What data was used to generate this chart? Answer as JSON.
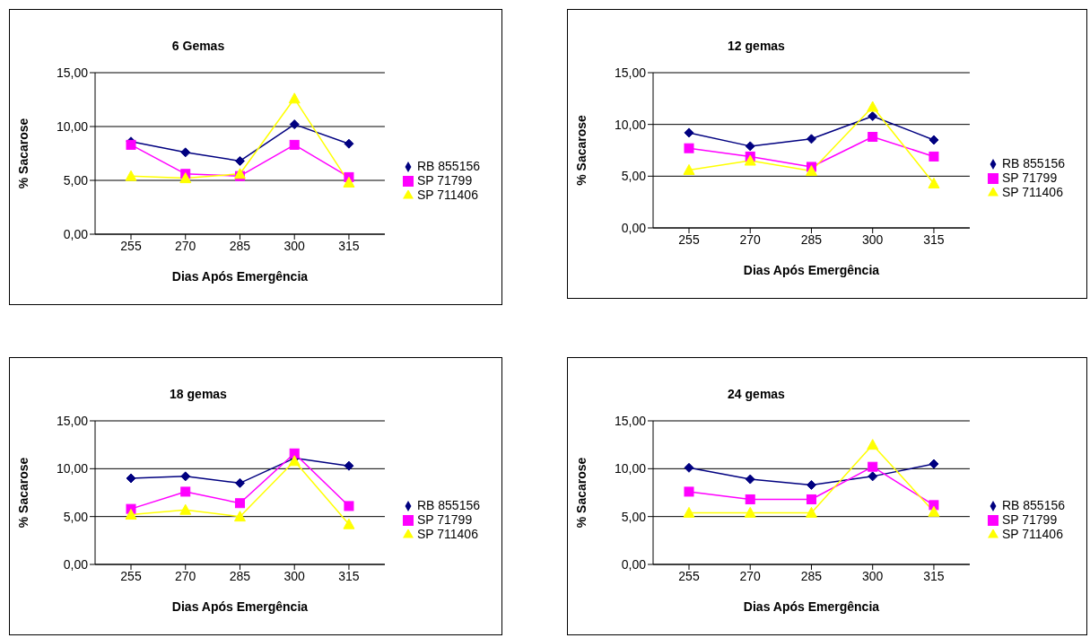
{
  "chart_data": [
    {
      "type": "line",
      "title": "6 Gemas",
      "xlabel": "Dias Após Emergência",
      "ylabel": "% Sacarose",
      "categories": [
        "255",
        "270",
        "285",
        "300",
        "315"
      ],
      "ylim": [
        0,
        15
      ],
      "yticks": [
        {
          "value": 0,
          "label": "0,00"
        },
        {
          "value": 5,
          "label": "5,00"
        },
        {
          "value": 10,
          "label": "10,00"
        },
        {
          "value": 15,
          "label": "15,00"
        }
      ],
      "grid": "y",
      "legend": "right",
      "series": [
        {
          "name": "RB 855156",
          "color": "#000080",
          "marker": "diamond",
          "values": [
            8.6,
            7.6,
            6.8,
            10.2,
            8.4
          ]
        },
        {
          "name": "SP 71799",
          "color": "#ff00ff",
          "marker": "square",
          "values": [
            8.3,
            5.6,
            5.4,
            8.3,
            5.3
          ]
        },
        {
          "name": "SP 711406",
          "color": "#ffff00",
          "marker": "triangle",
          "values": [
            5.4,
            5.2,
            5.6,
            12.6,
            4.8
          ]
        }
      ]
    },
    {
      "type": "line",
      "title": "12 gemas",
      "xlabel": "Dias Após Emergência",
      "ylabel": "% Sacarose",
      "categories": [
        "255",
        "270",
        "285",
        "300",
        "315"
      ],
      "ylim": [
        0,
        15
      ],
      "yticks": [
        {
          "value": 0,
          "label": "0,00"
        },
        {
          "value": 5,
          "label": "5,00"
        },
        {
          "value": 10,
          "label": "10,00"
        },
        {
          "value": 15,
          "label": "15,00"
        }
      ],
      "grid": "y",
      "legend": "right",
      "series": [
        {
          "name": "RB 855156",
          "color": "#000080",
          "marker": "diamond",
          "values": [
            9.2,
            7.9,
            8.6,
            10.8,
            8.5
          ]
        },
        {
          "name": "SP 71799",
          "color": "#ff00ff",
          "marker": "square",
          "values": [
            7.7,
            6.9,
            5.9,
            8.8,
            6.9
          ]
        },
        {
          "name": "SP 711406",
          "color": "#ffff00",
          "marker": "triangle",
          "values": [
            5.6,
            6.5,
            5.5,
            11.7,
            4.3
          ]
        }
      ]
    },
    {
      "type": "line",
      "title": "18 gemas",
      "xlabel": "Dias Após Emergência",
      "ylabel": "% Sacarose",
      "categories": [
        "255",
        "270",
        "285",
        "300",
        "315"
      ],
      "ylim": [
        0,
        15
      ],
      "yticks": [
        {
          "value": 0,
          "label": "0,00"
        },
        {
          "value": 5,
          "label": "5,00"
        },
        {
          "value": 10,
          "label": "10,00"
        },
        {
          "value": 15,
          "label": "15,00"
        }
      ],
      "grid": "y",
      "legend": "right",
      "series": [
        {
          "name": "RB 855156",
          "color": "#000080",
          "marker": "diamond",
          "values": [
            9.0,
            9.2,
            8.5,
            11.1,
            10.3
          ]
        },
        {
          "name": "SP 71799",
          "color": "#ff00ff",
          "marker": "square",
          "values": [
            5.8,
            7.6,
            6.4,
            11.6,
            6.1
          ]
        },
        {
          "name": "SP 711406",
          "color": "#ffff00",
          "marker": "triangle",
          "values": [
            5.2,
            5.7,
            5.0,
            10.8,
            4.2
          ]
        }
      ]
    },
    {
      "type": "line",
      "title": "24 gemas",
      "xlabel": "Dias Após Emergência",
      "ylabel": "% Sacarose",
      "categories": [
        "255",
        "270",
        "285",
        "300",
        "315"
      ],
      "ylim": [
        0,
        15
      ],
      "yticks": [
        {
          "value": 0,
          "label": "0,00"
        },
        {
          "value": 5,
          "label": "5,00"
        },
        {
          "value": 10,
          "label": "10,00"
        },
        {
          "value": 15,
          "label": "15,00"
        }
      ],
      "grid": "y",
      "legend": "right",
      "series": [
        {
          "name": "RB 855156",
          "color": "#000080",
          "marker": "diamond",
          "values": [
            10.1,
            8.9,
            8.3,
            9.2,
            10.5
          ]
        },
        {
          "name": "SP 71799",
          "color": "#ff00ff",
          "marker": "square",
          "values": [
            7.6,
            6.8,
            6.8,
            10.2,
            6.2
          ]
        },
        {
          "name": "SP 711406",
          "color": "#ffff00",
          "marker": "triangle",
          "values": [
            5.4,
            5.4,
            5.4,
            12.5,
            5.5
          ]
        }
      ]
    }
  ]
}
